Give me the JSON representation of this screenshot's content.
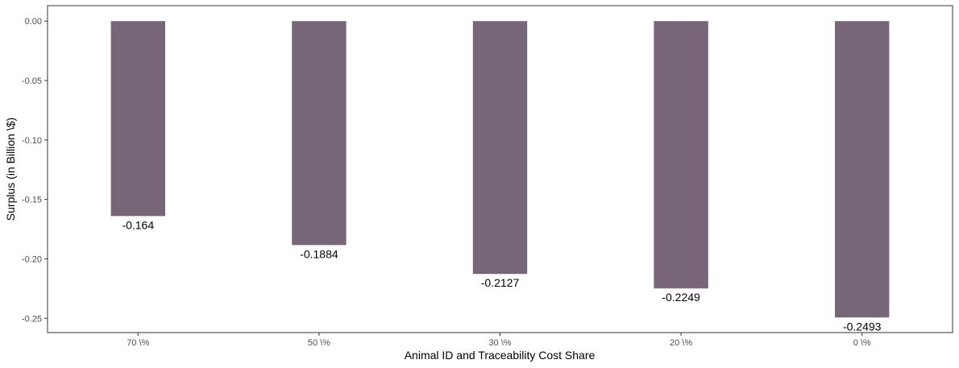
{
  "chart_data": {
    "type": "bar",
    "title": "",
    "xlabel": "Animal ID and Traceability Cost Share",
    "ylabel": "Surplus (in Billion \\$)",
    "categories": [
      "70 \\%",
      "50 \\%",
      "30 \\%",
      "20 \\%",
      "0 \\%"
    ],
    "values": [
      -0.164,
      -0.1884,
      -0.2127,
      -0.2249,
      -0.2493
    ],
    "data_labels": [
      "-0.164",
      "-0.1884",
      "-0.2127",
      "-0.2249",
      "-0.2493"
    ],
    "yticks": [
      0.0,
      -0.05,
      -0.1,
      -0.15,
      -0.2,
      -0.25
    ],
    "ytick_labels": [
      "0.00",
      "-0.05",
      "-0.10",
      "-0.15",
      "-0.20",
      "-0.25"
    ],
    "ylim": [
      -0.262,
      0.013
    ],
    "grid": false,
    "bar_color": "#776677",
    "frame_color": "#333333"
  }
}
